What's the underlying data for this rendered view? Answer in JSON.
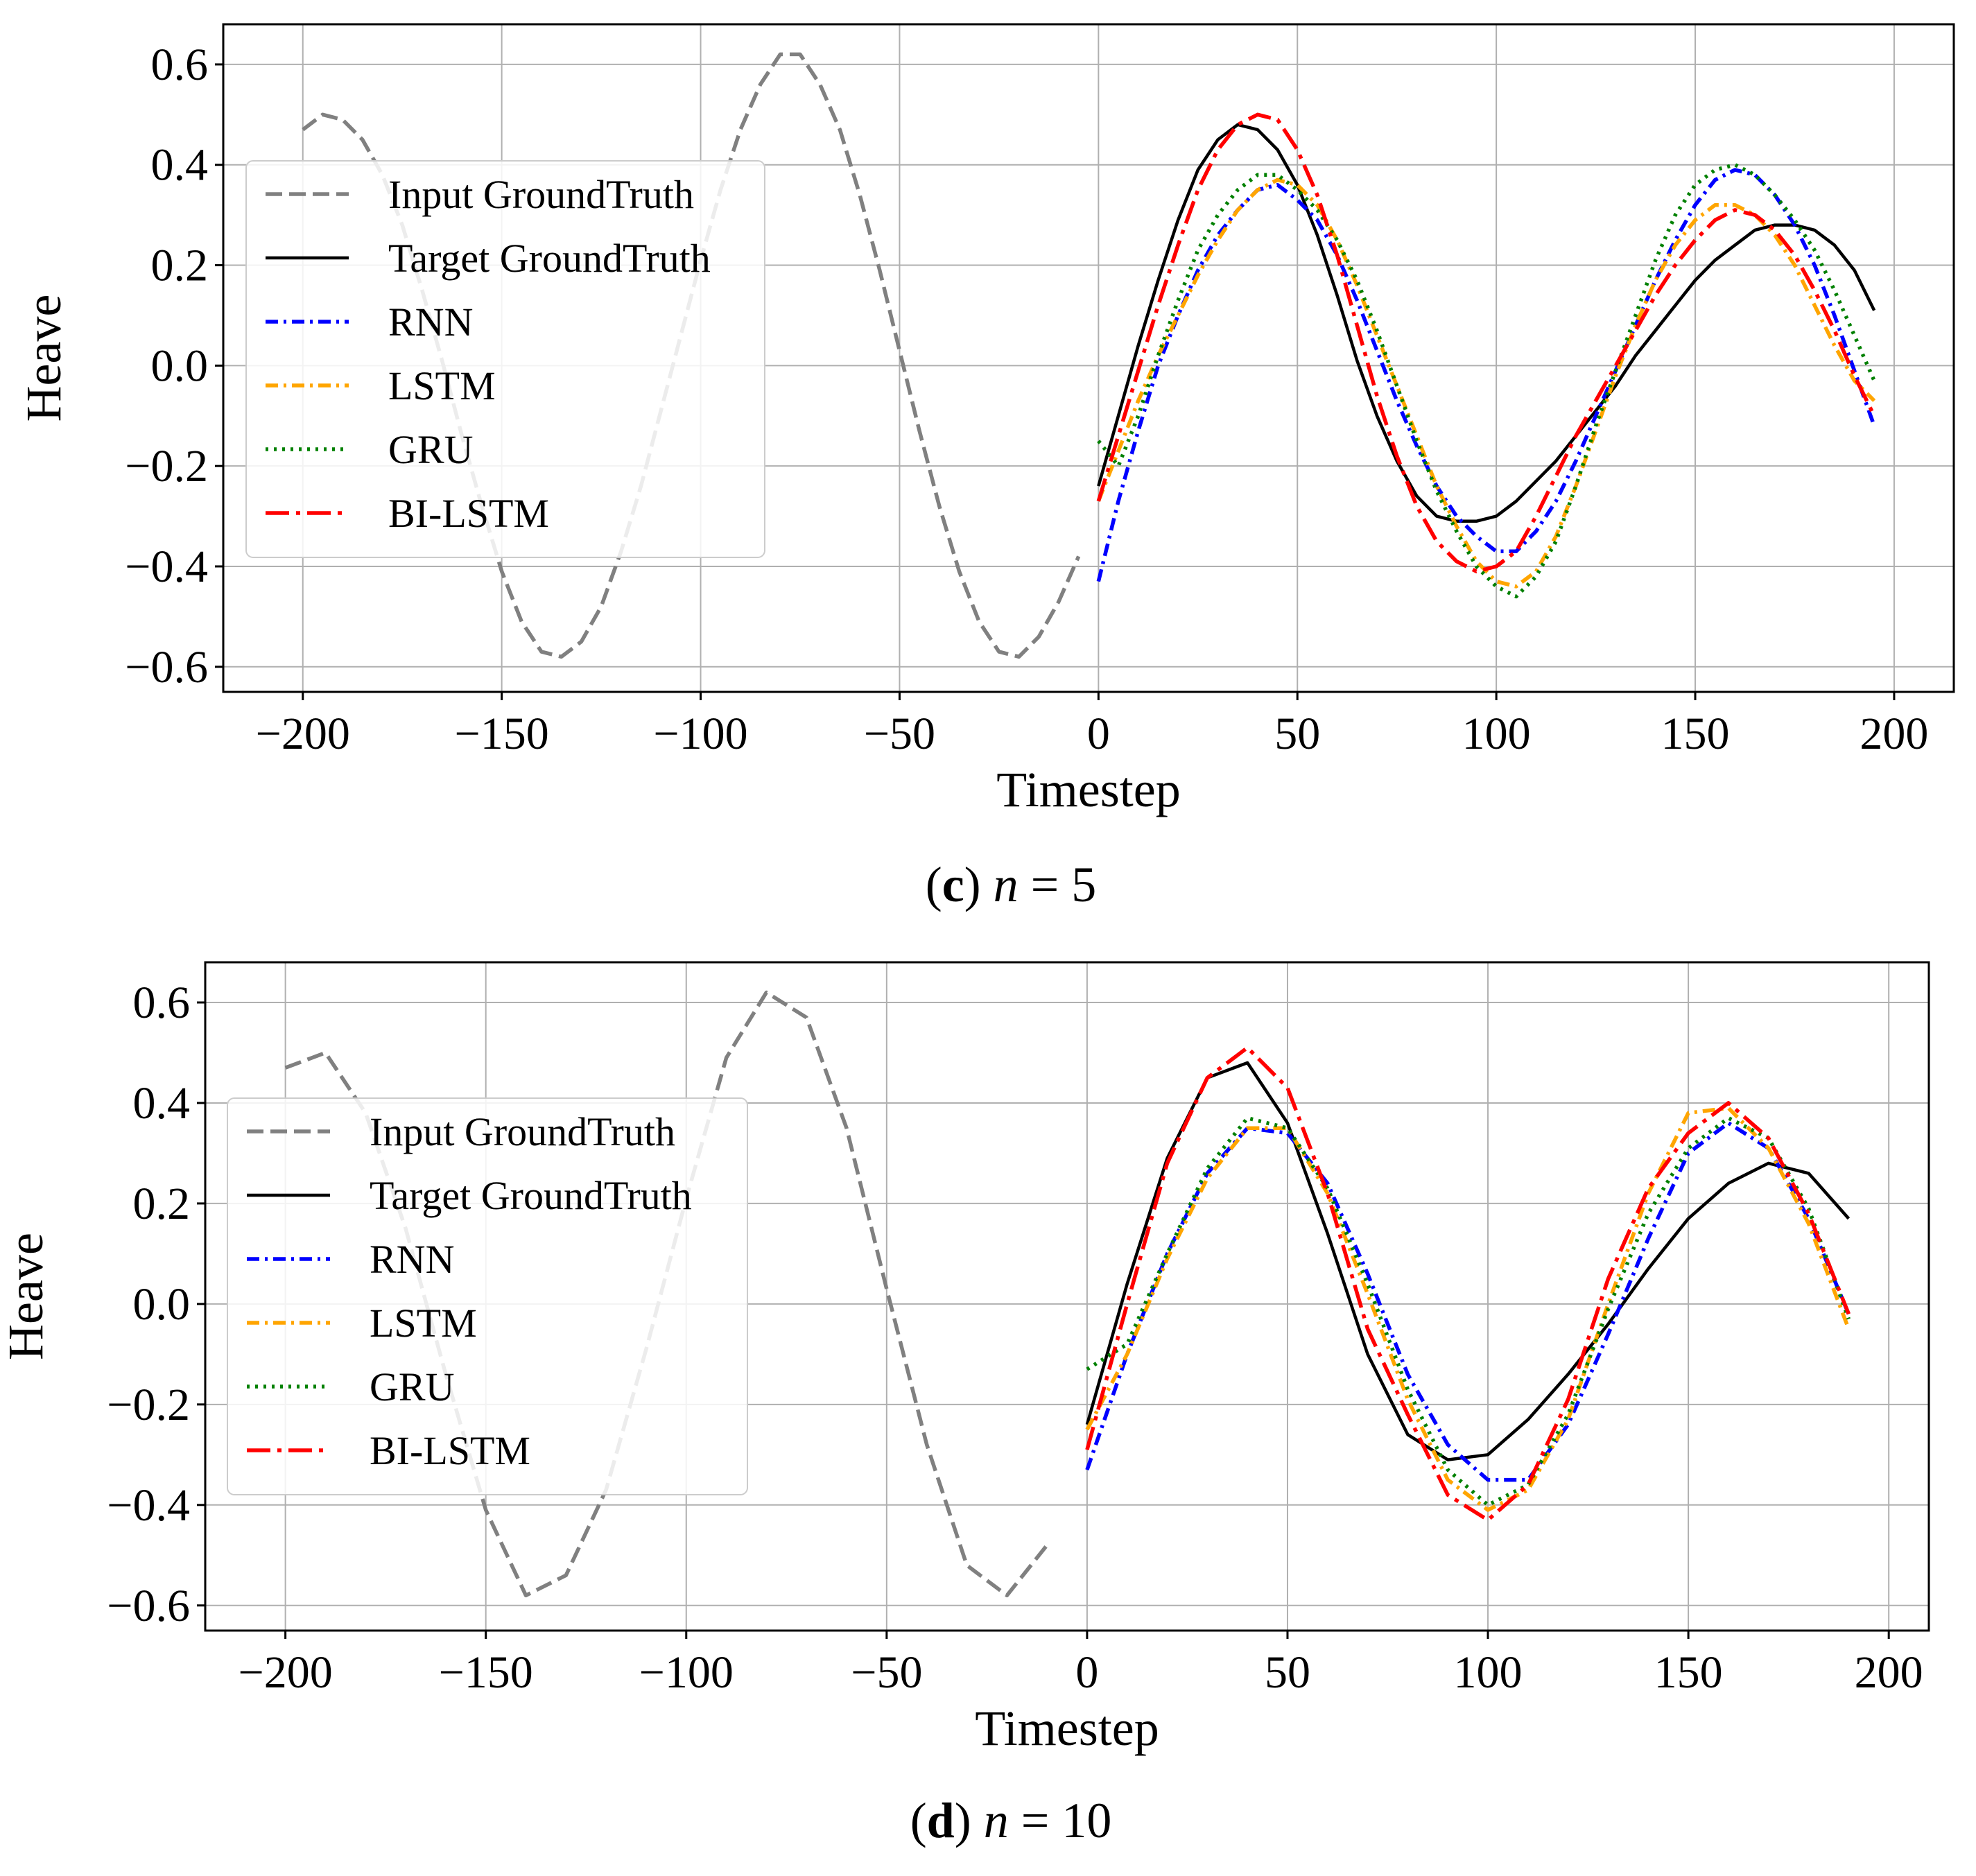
{
  "chart_data": [
    {
      "type": "line",
      "panel": "c",
      "caption": {
        "open": "(",
        "letter": "c",
        "close": ")",
        "var": "n",
        "eq": " = ",
        "value": "5"
      },
      "xlabel": "Timestep",
      "ylabel": "Heave",
      "xlim": [
        -220,
        215
      ],
      "ylim": [
        -0.65,
        0.68
      ],
      "xticks": [
        -200,
        -150,
        -100,
        -50,
        0,
        50,
        100,
        150,
        200
      ],
      "xtick_labels": [
        "−200",
        "−150",
        "−100",
        "−50",
        "0",
        "50",
        "100",
        "150",
        "200"
      ],
      "yticks": [
        -0.6,
        -0.4,
        -0.2,
        0.0,
        0.2,
        0.4,
        0.6
      ],
      "ytick_labels": [
        "−0.6",
        "−0.4",
        "−0.2",
        "0.0",
        "0.2",
        "0.4",
        "0.6"
      ],
      "grid": true,
      "legend_position": "upper-left",
      "series": [
        {
          "name": "Input GroundTruth",
          "color": "#808080",
          "style": "dashed",
          "x": [
            -200,
            -195,
            -190,
            -185,
            -180,
            -175,
            -170,
            -165,
            -160,
            -155,
            -150,
            -145,
            -140,
            -135,
            -130,
            -125,
            -120,
            -115,
            -110,
            -105,
            -100,
            -95,
            -90,
            -85,
            -80,
            -75,
            -70,
            -65,
            -60,
            -55,
            -50,
            -45,
            -40,
            -35,
            -30,
            -25,
            -20,
            -15,
            -10,
            -5
          ],
          "y": [
            0.47,
            0.5,
            0.49,
            0.45,
            0.38,
            0.28,
            0.15,
            0.01,
            -0.14,
            -0.28,
            -0.41,
            -0.51,
            -0.57,
            -0.58,
            -0.55,
            -0.48,
            -0.37,
            -0.24,
            -0.09,
            0.06,
            0.21,
            0.35,
            0.47,
            0.56,
            0.62,
            0.62,
            0.56,
            0.47,
            0.34,
            0.19,
            0.03,
            -0.13,
            -0.28,
            -0.41,
            -0.51,
            -0.57,
            -0.58,
            -0.54,
            -0.47,
            -0.38
          ]
        },
        {
          "name": "Target GroundTruth",
          "color": "#000000",
          "style": "solid",
          "x": [
            0,
            5,
            10,
            15,
            20,
            25,
            30,
            35,
            40,
            45,
            50,
            55,
            60,
            65,
            70,
            75,
            80,
            85,
            90,
            95,
            100,
            105,
            110,
            115,
            120,
            125,
            130,
            135,
            140,
            145,
            150,
            155,
            160,
            165,
            170,
            175,
            180,
            185,
            190,
            195
          ],
          "y": [
            -0.24,
            -0.1,
            0.04,
            0.17,
            0.29,
            0.39,
            0.45,
            0.48,
            0.47,
            0.43,
            0.36,
            0.26,
            0.14,
            0.01,
            -0.1,
            -0.19,
            -0.26,
            -0.3,
            -0.31,
            -0.31,
            -0.3,
            -0.27,
            -0.23,
            -0.19,
            -0.14,
            -0.09,
            -0.04,
            0.02,
            0.07,
            0.12,
            0.17,
            0.21,
            0.24,
            0.27,
            0.28,
            0.28,
            0.27,
            0.24,
            0.19,
            0.11
          ]
        },
        {
          "name": "RNN",
          "color": "#0000ff",
          "style": "dashdot",
          "x": [
            0,
            5,
            10,
            15,
            20,
            25,
            30,
            35,
            40,
            45,
            50,
            55,
            60,
            65,
            70,
            75,
            80,
            85,
            90,
            95,
            100,
            105,
            110,
            115,
            120,
            125,
            130,
            135,
            140,
            145,
            150,
            155,
            160,
            165,
            170,
            175,
            180,
            185,
            190,
            195
          ],
          "y": [
            -0.43,
            -0.27,
            -0.13,
            0.0,
            0.1,
            0.19,
            0.26,
            0.31,
            0.35,
            0.36,
            0.33,
            0.29,
            0.22,
            0.13,
            0.03,
            -0.07,
            -0.16,
            -0.24,
            -0.3,
            -0.34,
            -0.37,
            -0.37,
            -0.33,
            -0.27,
            -0.19,
            -0.1,
            -0.01,
            0.08,
            0.17,
            0.25,
            0.32,
            0.37,
            0.39,
            0.38,
            0.34,
            0.28,
            0.2,
            0.1,
            -0.01,
            -0.12
          ]
        },
        {
          "name": "LSTM",
          "color": "#ffa500",
          "style": "dashdot",
          "x": [
            0,
            5,
            10,
            15,
            20,
            25,
            30,
            35,
            40,
            45,
            50,
            55,
            60,
            65,
            70,
            75,
            80,
            85,
            90,
            95,
            100,
            105,
            110,
            115,
            120,
            125,
            130,
            135,
            140,
            145,
            150,
            155,
            160,
            165,
            170,
            175,
            180,
            185,
            190,
            195
          ],
          "y": [
            -0.27,
            -0.17,
            -0.07,
            0.02,
            0.1,
            0.18,
            0.25,
            0.31,
            0.35,
            0.37,
            0.36,
            0.32,
            0.25,
            0.16,
            0.06,
            -0.04,
            -0.14,
            -0.24,
            -0.32,
            -0.39,
            -0.43,
            -0.44,
            -0.41,
            -0.34,
            -0.24,
            -0.13,
            -0.02,
            0.08,
            0.17,
            0.24,
            0.29,
            0.32,
            0.32,
            0.3,
            0.26,
            0.2,
            0.12,
            0.04,
            -0.03,
            -0.07
          ]
        },
        {
          "name": "GRU",
          "color": "#008000",
          "style": "dotted",
          "x": [
            0,
            5,
            10,
            15,
            20,
            25,
            30,
            35,
            40,
            45,
            50,
            55,
            60,
            65,
            70,
            75,
            80,
            85,
            90,
            95,
            100,
            105,
            110,
            115,
            120,
            125,
            130,
            135,
            140,
            145,
            150,
            155,
            160,
            165,
            170,
            175,
            180,
            185,
            190,
            195
          ],
          "y": [
            -0.15,
            -0.2,
            -0.1,
            0.02,
            0.13,
            0.23,
            0.3,
            0.35,
            0.38,
            0.38,
            0.35,
            0.31,
            0.25,
            0.17,
            0.07,
            -0.04,
            -0.15,
            -0.25,
            -0.33,
            -0.4,
            -0.44,
            -0.46,
            -0.42,
            -0.35,
            -0.24,
            -0.12,
            -0.01,
            0.1,
            0.21,
            0.3,
            0.36,
            0.39,
            0.4,
            0.38,
            0.34,
            0.29,
            0.23,
            0.15,
            0.06,
            -0.03
          ]
        },
        {
          "name": "BI-LSTM",
          "color": "#ff0000",
          "style": "longdashdot",
          "x": [
            0,
            5,
            10,
            15,
            20,
            25,
            30,
            35,
            40,
            45,
            50,
            55,
            60,
            65,
            70,
            75,
            80,
            85,
            90,
            95,
            100,
            105,
            110,
            115,
            120,
            125,
            130,
            135,
            140,
            145,
            150,
            155,
            160,
            165,
            170,
            175,
            180,
            185,
            190,
            195
          ],
          "y": [
            -0.27,
            -0.14,
            -0.01,
            0.12,
            0.24,
            0.35,
            0.43,
            0.48,
            0.5,
            0.49,
            0.43,
            0.34,
            0.22,
            0.08,
            -0.06,
            -0.18,
            -0.28,
            -0.35,
            -0.39,
            -0.41,
            -0.4,
            -0.37,
            -0.3,
            -0.22,
            -0.14,
            -0.07,
            0.0,
            0.07,
            0.14,
            0.2,
            0.25,
            0.29,
            0.31,
            0.3,
            0.27,
            0.22,
            0.15,
            0.07,
            -0.02,
            -0.1
          ]
        }
      ]
    },
    {
      "type": "line",
      "panel": "d",
      "caption": {
        "open": "(",
        "letter": "d",
        "close": ")",
        "var": "n",
        "eq": " = ",
        "value": "10"
      },
      "xlabel": "Timestep",
      "ylabel": "Heave",
      "xlim": [
        -220,
        210
      ],
      "ylim": [
        -0.65,
        0.68
      ],
      "xticks": [
        -200,
        -150,
        -100,
        -50,
        0,
        50,
        100,
        150,
        200
      ],
      "xtick_labels": [
        "−200",
        "−150",
        "−100",
        "−50",
        "0",
        "50",
        "100",
        "150",
        "200"
      ],
      "yticks": [
        -0.6,
        -0.4,
        -0.2,
        0.0,
        0.2,
        0.4,
        0.6
      ],
      "ytick_labels": [
        "−0.6",
        "−0.4",
        "−0.2",
        "0.0",
        "0.2",
        "0.4",
        "0.6"
      ],
      "grid": true,
      "legend_position": "upper-left",
      "series": [
        {
          "name": "Input GroundTruth",
          "color": "#808080",
          "style": "dashed",
          "x": [
            -200,
            -190,
            -180,
            -170,
            -160,
            -150,
            -140,
            -130,
            -120,
            -110,
            -100,
            -90,
            -80,
            -70,
            -60,
            -50,
            -40,
            -30,
            -20,
            -10
          ],
          "y": [
            0.47,
            0.5,
            0.38,
            0.15,
            -0.14,
            -0.41,
            -0.58,
            -0.54,
            -0.37,
            -0.09,
            0.21,
            0.49,
            0.62,
            0.57,
            0.35,
            0.03,
            -0.28,
            -0.52,
            -0.58,
            -0.48
          ]
        },
        {
          "name": "Target GroundTruth",
          "color": "#000000",
          "style": "solid",
          "x": [
            0,
            10,
            20,
            30,
            40,
            50,
            60,
            70,
            80,
            90,
            100,
            110,
            120,
            130,
            140,
            150,
            160,
            170,
            180,
            190
          ],
          "y": [
            -0.24,
            0.04,
            0.29,
            0.45,
            0.48,
            0.36,
            0.14,
            -0.1,
            -0.26,
            -0.31,
            -0.3,
            -0.23,
            -0.14,
            -0.04,
            0.07,
            0.17,
            0.24,
            0.28,
            0.26,
            0.17
          ]
        },
        {
          "name": "RNN",
          "color": "#0000ff",
          "style": "dashdot",
          "x": [
            0,
            10,
            20,
            30,
            40,
            50,
            60,
            70,
            80,
            90,
            100,
            110,
            120,
            130,
            140,
            150,
            160,
            170,
            180,
            190
          ],
          "y": [
            -0.33,
            -0.1,
            0.1,
            0.26,
            0.35,
            0.34,
            0.24,
            0.06,
            -0.14,
            -0.28,
            -0.35,
            -0.35,
            -0.24,
            -0.06,
            0.13,
            0.3,
            0.36,
            0.31,
            0.17,
            -0.02
          ]
        },
        {
          "name": "LSTM",
          "color": "#ffa500",
          "style": "dashdot",
          "x": [
            0,
            10,
            20,
            30,
            40,
            50,
            60,
            70,
            80,
            90,
            100,
            110,
            120,
            130,
            140,
            150,
            160,
            170,
            180,
            190
          ],
          "y": [
            -0.25,
            -0.1,
            0.09,
            0.25,
            0.35,
            0.35,
            0.22,
            0.02,
            -0.19,
            -0.35,
            -0.41,
            -0.37,
            -0.23,
            0.0,
            0.22,
            0.38,
            0.39,
            0.31,
            0.16,
            -0.05
          ]
        },
        {
          "name": "GRU",
          "color": "#008000",
          "style": "dotted",
          "x": [
            0,
            10,
            20,
            30,
            40,
            50,
            60,
            70,
            80,
            90,
            100,
            110,
            120,
            130,
            140,
            150,
            160,
            170,
            180,
            190
          ],
          "y": [
            -0.13,
            -0.08,
            0.1,
            0.27,
            0.37,
            0.35,
            0.23,
            0.04,
            -0.17,
            -0.33,
            -0.4,
            -0.36,
            -0.22,
            -0.01,
            0.18,
            0.31,
            0.37,
            0.33,
            0.19,
            -0.03
          ]
        },
        {
          "name": "BI-LSTM",
          "color": "#ff0000",
          "style": "longdashdot",
          "x": [
            0,
            10,
            20,
            30,
            40,
            50,
            60,
            70,
            80,
            90,
            100,
            110,
            120,
            130,
            140,
            150,
            160,
            170,
            180,
            190
          ],
          "y": [
            -0.29,
            0.0,
            0.28,
            0.45,
            0.51,
            0.43,
            0.22,
            -0.05,
            -0.22,
            -0.38,
            -0.43,
            -0.36,
            -0.19,
            0.05,
            0.23,
            0.34,
            0.4,
            0.33,
            0.18,
            -0.02
          ]
        }
      ]
    }
  ]
}
